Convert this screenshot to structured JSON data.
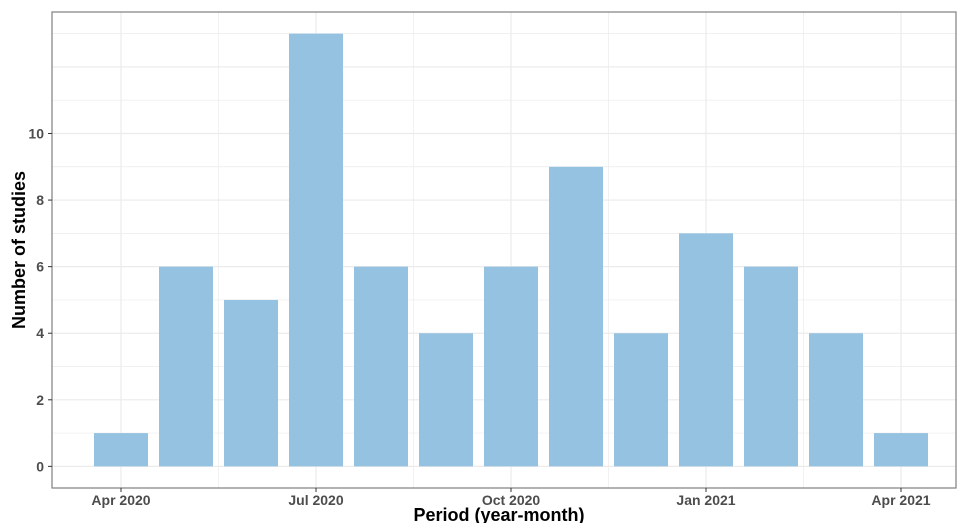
{
  "chart_data": {
    "type": "bar",
    "title": "",
    "xlabel": "Period (year-month)",
    "ylabel": "Number of studies",
    "x": [
      "2020-04",
      "2020-05",
      "2020-06",
      "2020-07",
      "2020-08",
      "2020-09",
      "2020-10",
      "2020-11",
      "2020-12",
      "2021-01",
      "2021-02",
      "2021-03",
      "2021-04"
    ],
    "values": [
      1,
      6,
      5,
      13,
      6,
      4,
      6,
      9,
      4,
      7,
      6,
      4,
      1
    ],
    "x_ticks": [
      {
        "at": "2020-04",
        "label": "Apr 2020"
      },
      {
        "at": "2020-07",
        "label": "Jul 2020"
      },
      {
        "at": "2020-10",
        "label": "Oct 2020"
      },
      {
        "at": "2021-01",
        "label": "Jan 2021"
      },
      {
        "at": "2021-04",
        "label": "Apr 2021"
      }
    ],
    "y_ticks": [
      0,
      2,
      4,
      6,
      8,
      10
    ],
    "ylim": [
      -0.65,
      13.65
    ],
    "grid": true,
    "legend": "none",
    "colors": {
      "bar": "#96c2e1",
      "grid": "#ebebeb",
      "panel_border": "#7f7f7f",
      "tick_text": "#4d4d4d",
      "title_text": "#000000"
    }
  }
}
